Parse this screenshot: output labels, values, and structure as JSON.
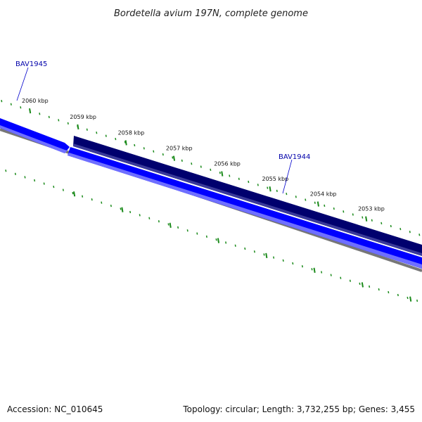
{
  "title": "Bordetella avium 197N, complete genome",
  "footer": {
    "accession": "Accession: NC_010645",
    "summary": "Topology: circular; Length: 3,732,255 bp; Genes: 3,455"
  },
  "colors": {
    "forward_gene": "#0000ff",
    "forward_gene_light": "#6f6fff",
    "reverse_gene": "#00006e",
    "backbone": "#777777",
    "tick": "#1a8a1a",
    "label": "#0000aa",
    "text": "#111111"
  },
  "ticks": [
    {
      "label": "2060 kbp",
      "kbp": 2060
    },
    {
      "label": "2059 kbp",
      "kbp": 2059
    },
    {
      "label": "2058 kbp",
      "kbp": 2058
    },
    {
      "label": "2057 kbp",
      "kbp": 2057
    },
    {
      "label": "2056 kbp",
      "kbp": 2056
    },
    {
      "label": "2055 kbp",
      "kbp": 2055
    },
    {
      "label": "2054 kbp",
      "kbp": 2054
    },
    {
      "label": "2053 kbp",
      "kbp": 2053
    }
  ],
  "genes": [
    {
      "name": "BAV1945",
      "strand": "forward"
    },
    {
      "name": "BAV1944",
      "strand": "reverse"
    }
  ]
}
